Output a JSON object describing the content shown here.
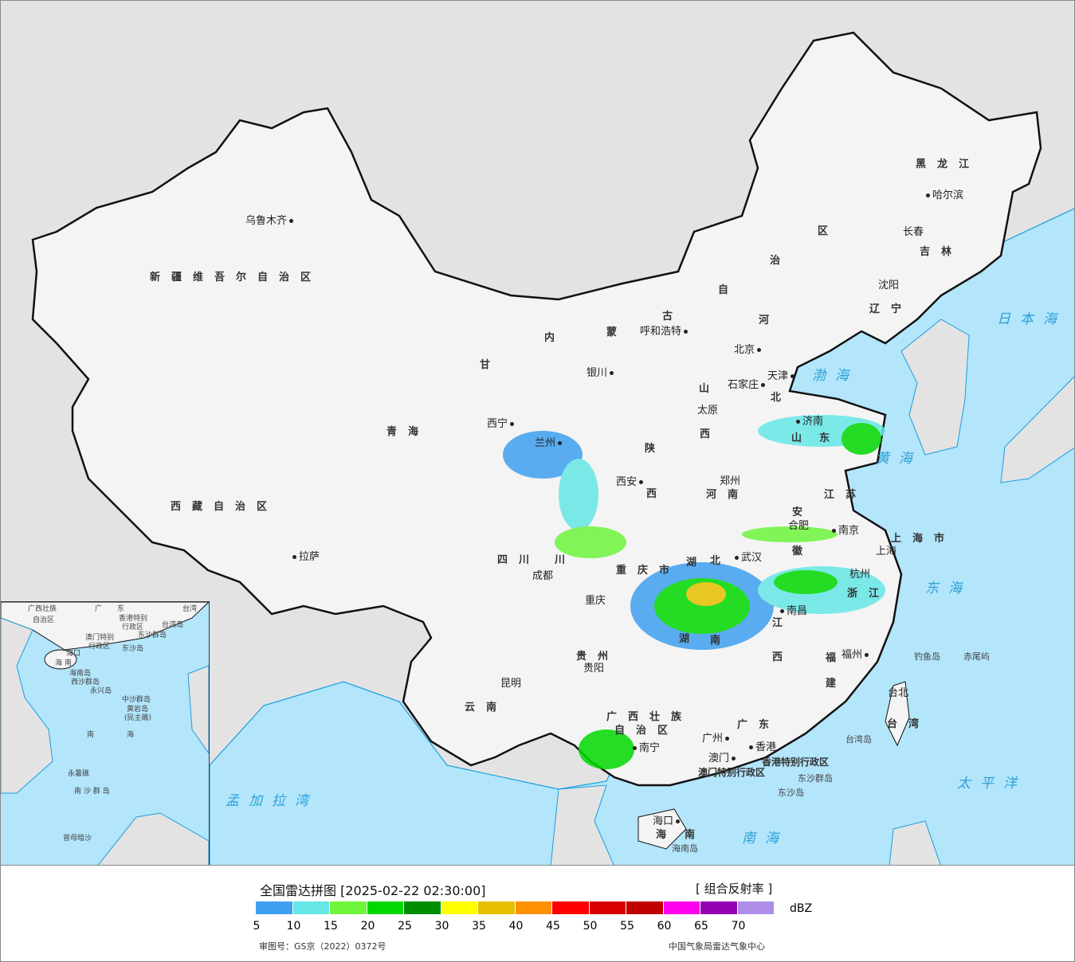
{
  "header": {
    "title": "全国雷达拼图 [2025-02-22 02:30:00]",
    "product": "[ 组合反射率 ]"
  },
  "legend": {
    "unit": "dBZ",
    "colors": [
      "#3fa0f0",
      "#66e6e6",
      "#6ef53c",
      "#00d800",
      "#008f00",
      "#ffff00",
      "#e6c000",
      "#ff9000",
      "#ff0000",
      "#d80000",
      "#c00000",
      "#ff00f0",
      "#9600b4",
      "#ae8ee8"
    ],
    "ticks": [
      "5",
      "10",
      "15",
      "20",
      "25",
      "30",
      "35",
      "40",
      "45",
      "50",
      "55",
      "60",
      "65",
      "70"
    ]
  },
  "footer": {
    "approval": "审图号：GS京（2022）0372号",
    "source": "中国气象局雷达气象中心"
  },
  "map": {
    "colors": {
      "ocean": "#b3e5fb",
      "land_other": "#e3e3e3",
      "china": "#f4f4f4",
      "coast": "#1a9ee0"
    },
    "provinces": [
      "新疆维吾尔自治区",
      "西藏自治区",
      "青海",
      "甘",
      "四川",
      "云南",
      "内",
      "蒙",
      "古",
      "自",
      "治",
      "区",
      "黑龙江",
      "吉林",
      "辽宁",
      "河",
      "北",
      "山",
      "西",
      "陕",
      "西",
      "河南",
      "山",
      "东",
      "江苏",
      "安",
      "徽",
      "湖",
      "北",
      "湖",
      "南",
      "江",
      "西",
      "浙江",
      "福",
      "建",
      "广东",
      "广西壮族",
      "自治区",
      "贵州",
      "重庆市",
      "上海市",
      "台湾",
      "海",
      "南",
      "川"
    ],
    "cities": [
      "乌鲁木齐",
      "拉萨",
      "西宁",
      "兰州",
      "银川",
      "呼和浩特",
      "北京",
      "天津",
      "石家庄",
      "太原",
      "济南",
      "西安",
      "郑州",
      "合肥",
      "南京",
      "上海",
      "武汉",
      "成都",
      "重庆",
      "杭州",
      "南昌",
      "贵阳",
      "昆明",
      "南宁",
      "广州",
      "澳门",
      "香港",
      "福州",
      "台北",
      "海口",
      "沈阳",
      "长春",
      "哈尔滨"
    ],
    "seas": [
      "日本海",
      "渤海",
      "黄海",
      "东海",
      "太平洋",
      "南海",
      "孟加拉湾"
    ],
    "islands": [
      "钓鱼岛",
      "赤尾屿",
      "台湾岛",
      "东沙群岛",
      "东沙岛",
      "海南岛"
    ],
    "sars": [
      "香港特别行政区",
      "澳门特别行政区"
    ],
    "inset": {
      "labels": [
        "广西壮族",
        "自治区",
        "广",
        "东",
        "台湾",
        "香港特别",
        "行政区",
        "澳门特别",
        "行政区",
        "台湾岛",
        "东沙群岛",
        "东沙岛",
        "海口",
        "海",
        "南",
        "海南岛",
        "西沙群岛",
        "永兴岛",
        "中沙群岛",
        "黄岩岛",
        "(民主礁)",
        "南",
        "海",
        "永暑礁",
        "南 沙 群 岛",
        "曾母暗沙"
      ]
    }
  }
}
